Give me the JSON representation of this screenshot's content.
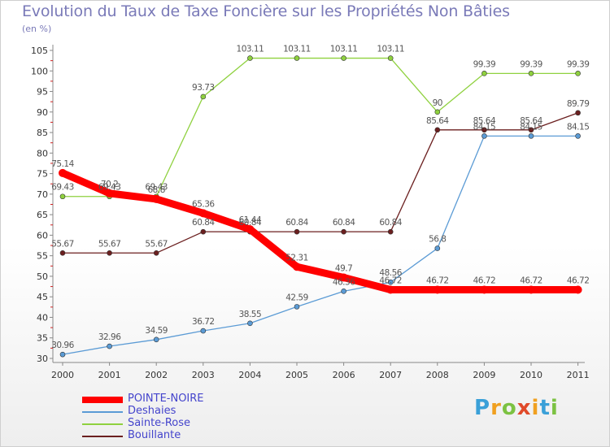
{
  "header": {
    "title": "Evolution du Taux de Taxe Foncière sur les Propriétés Non Bâties",
    "unit": "(en %)"
  },
  "chart_data": {
    "type": "line",
    "categories": [
      "2000",
      "2001",
      "2002",
      "2003",
      "2004",
      "2005",
      "2006",
      "2007",
      "2008",
      "2009",
      "2010",
      "2011"
    ],
    "ylim": [
      30,
      105
    ],
    "yticks": [
      30,
      35,
      40,
      45,
      50,
      55,
      60,
      65,
      70,
      75,
      80,
      85,
      90,
      95,
      100,
      105
    ],
    "grid": false,
    "legend_position": "bottom-left",
    "series": [
      {
        "name": "Bouillante",
        "color": "#6b1f1f",
        "values": [
          55.67,
          55.67,
          55.67,
          60.84,
          60.84,
          60.84,
          60.84,
          60.84,
          85.64,
          85.64,
          85.64,
          89.79
        ],
        "labels": [
          "55.67",
          "55.67",
          "55.67",
          "60.84",
          "60.84",
          "60.84",
          "60.84",
          "60.84",
          "85.64",
          "85.64",
          "85.64",
          "89.79"
        ]
      },
      {
        "name": "Sainte-Rose",
        "color": "#8fd13f",
        "values": [
          69.43,
          69.43,
          69.43,
          93.73,
          103.11,
          103.11,
          103.11,
          103.11,
          90,
          99.39,
          99.39,
          99.39
        ],
        "labels": [
          "69.43",
          "69.43",
          "69.43",
          "93.73",
          "103.11",
          "103.11",
          "103.11",
          "103.11",
          "90",
          "99.39",
          "99.39",
          "99.39"
        ]
      },
      {
        "name": "Deshaies",
        "color": "#5b9bd5",
        "values": [
          30.96,
          32.96,
          34.59,
          36.72,
          38.55,
          42.59,
          46.36,
          48.56,
          56.8,
          84.15,
          84.15,
          84.15
        ],
        "labels": [
          "30.96",
          "32.96",
          "34.59",
          "36.72",
          "38.55",
          "42.59",
          "46.36",
          "48.56",
          "56.8",
          "84.15",
          "84.15",
          "84.15"
        ]
      },
      {
        "name": "POINTE-NOIRE",
        "color": "#ff0000",
        "values": [
          75.14,
          70.2,
          68.8,
          65.36,
          61.44,
          52.31,
          49.7,
          46.72,
          46.72,
          46.72,
          46.72,
          46.72
        ],
        "labels": [
          "75.14",
          "70.2",
          "68.8",
          "65.36",
          "61.44",
          "52.31",
          "49.7",
          "46.72",
          "46.72",
          "46.72",
          "46.72",
          "46.72"
        ]
      }
    ]
  },
  "legend": {
    "items": [
      {
        "label": "POINTE-NOIRE",
        "color": "#ff0000"
      },
      {
        "label": "Deshaies",
        "color": "#5b9bd5"
      },
      {
        "label": "Sainte-Rose",
        "color": "#8fd13f"
      },
      {
        "label": "Bouillante",
        "color": "#6b1f1f"
      }
    ]
  },
  "logo": {
    "letters": [
      "P",
      "r",
      "o",
      "x",
      "i",
      "t",
      "i"
    ],
    "colors": [
      "#3aa0d8",
      "#f0a020",
      "#7cc242",
      "#e04a2a",
      "#f0a020",
      "#3aa0d8",
      "#7cc242"
    ]
  }
}
